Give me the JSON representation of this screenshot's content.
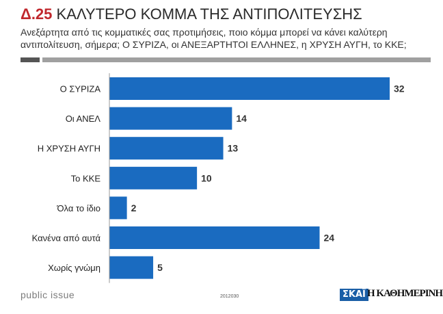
{
  "header": {
    "number": "Δ.25",
    "title": "ΚΑΛΥΤΕΡΟ ΚΟΜΜΑ ΤΗΣ ΑΝΤΙΠΟΛΙΤΕΥΣΗΣ",
    "question_line1": "Ανεξάρτητα από τις κομματικές σας προτιμήσεις, ποιο κόμμα μπορεί να κάνει καλύτερη",
    "question_line2": "αντιπολίτευση, σήμερα; Ο ΣΥΡΙΖΑ, οι ΑΝΕΞΑΡΤΗΤΟΙ ΕΛΛΗΝΕΣ, η ΧΡΥΣΗ ΑΥΓΗ, το ΚΚΕ;"
  },
  "footer": {
    "brand": "public issue",
    "code": "2012030",
    "logo_skai": "ΣΚΑΪ",
    "logo_kathimerini": "Η ΚΑΘΗΜΕΡΙΝΗ"
  },
  "colors": {
    "bar": "#1a6bc0",
    "title_number": "#c0272d"
  },
  "chart_data": {
    "type": "bar",
    "orientation": "horizontal",
    "categories": [
      "Ο ΣΥΡΙΖΑ",
      "Οι ΑΝΕΛ",
      "Η ΧΡΥΣΗ ΑΥΓΗ",
      "Το ΚΚΕ",
      "Όλα το ίδιο",
      "Κανένα από αυτά",
      "Χωρίς γνώμη"
    ],
    "values": [
      32,
      14,
      13,
      10,
      2,
      24,
      5
    ],
    "xlim": [
      0,
      32
    ],
    "grid": false,
    "legend": false,
    "data_labels": true
  }
}
